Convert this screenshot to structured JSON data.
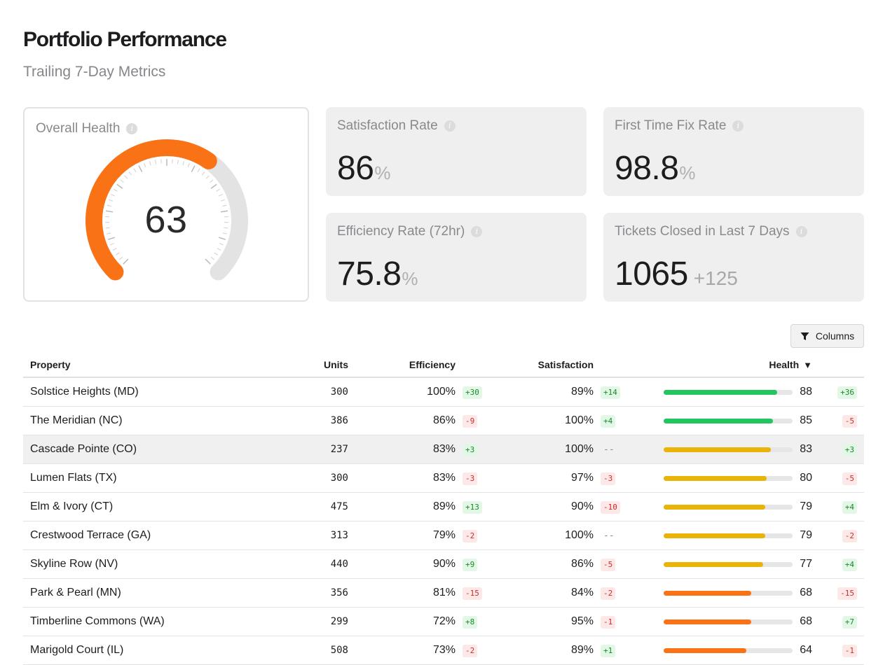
{
  "header": {
    "title": "Portfolio Performance",
    "subtitle": "Trailing 7-Day Metrics"
  },
  "overall_health": {
    "label": "Overall Health",
    "value": 63,
    "max": 100,
    "color": "#f97316"
  },
  "cards": {
    "satisfaction": {
      "label": "Satisfaction Rate",
      "value": "86",
      "unit": "%"
    },
    "first_time_fix": {
      "label": "First Time Fix Rate",
      "value": "98.8",
      "unit": "%"
    },
    "efficiency": {
      "label": "Efficiency Rate (72hr)",
      "value": "75.8",
      "unit": "%"
    },
    "tickets": {
      "label": "Tickets Closed in Last 7 Days",
      "value": "1065",
      "delta": "+125"
    }
  },
  "columns_button": {
    "label": "Columns",
    "icon": "filter-icon"
  },
  "table": {
    "headers": {
      "property": "Property",
      "units": "Units",
      "efficiency": "Efficiency",
      "satisfaction": "Satisfaction",
      "health": "Health",
      "sort_indicator": "▼"
    },
    "colors": {
      "green": "#22c55e",
      "yellow": "#eab308",
      "orange": "#f97316"
    },
    "rows": [
      {
        "property": "Solstice Heights (MD)",
        "units": "300",
        "efficiency": "100%",
        "efficiency_delta": "+30",
        "satisfaction": "89%",
        "satisfaction_delta": "+14",
        "health": 88,
        "health_delta": "+36",
        "bar_color": "green"
      },
      {
        "property": "The Meridian (NC)",
        "units": "386",
        "efficiency": "86%",
        "efficiency_delta": "-9",
        "satisfaction": "100%",
        "satisfaction_delta": "+4",
        "health": 85,
        "health_delta": "-5",
        "bar_color": "green"
      },
      {
        "property": "Cascade Pointe (CO)",
        "units": "237",
        "efficiency": "83%",
        "efficiency_delta": "+3",
        "satisfaction": "100%",
        "satisfaction_delta": "--",
        "health": 83,
        "health_delta": "+3",
        "bar_color": "yellow",
        "highlighted": true
      },
      {
        "property": "Lumen Flats (TX)",
        "units": "300",
        "efficiency": "83%",
        "efficiency_delta": "-3",
        "satisfaction": "97%",
        "satisfaction_delta": "-3",
        "health": 80,
        "health_delta": "-5",
        "bar_color": "yellow"
      },
      {
        "property": "Elm & Ivory (CT)",
        "units": "475",
        "efficiency": "89%",
        "efficiency_delta": "+13",
        "satisfaction": "90%",
        "satisfaction_delta": "-10",
        "health": 79,
        "health_delta": "+4",
        "bar_color": "yellow"
      },
      {
        "property": "Crestwood Terrace (GA)",
        "units": "313",
        "efficiency": "79%",
        "efficiency_delta": "-2",
        "satisfaction": "100%",
        "satisfaction_delta": "--",
        "health": 79,
        "health_delta": "-2",
        "bar_color": "yellow"
      },
      {
        "property": "Skyline Row (NV)",
        "units": "440",
        "efficiency": "90%",
        "efficiency_delta": "+9",
        "satisfaction": "86%",
        "satisfaction_delta": "-5",
        "health": 77,
        "health_delta": "+4",
        "bar_color": "yellow"
      },
      {
        "property": "Park & Pearl (MN)",
        "units": "356",
        "efficiency": "81%",
        "efficiency_delta": "-15",
        "satisfaction": "84%",
        "satisfaction_delta": "-2",
        "health": 68,
        "health_delta": "-15",
        "bar_color": "orange"
      },
      {
        "property": "Timberline Commons (WA)",
        "units": "299",
        "efficiency": "72%",
        "efficiency_delta": "+8",
        "satisfaction": "95%",
        "satisfaction_delta": "-1",
        "health": 68,
        "health_delta": "+7",
        "bar_color": "orange"
      },
      {
        "property": "Marigold Court (IL)",
        "units": "508",
        "efficiency": "73%",
        "efficiency_delta": "-2",
        "satisfaction": "89%",
        "satisfaction_delta": "+1",
        "health": 64,
        "health_delta": "-1",
        "bar_color": "orange"
      }
    ]
  }
}
